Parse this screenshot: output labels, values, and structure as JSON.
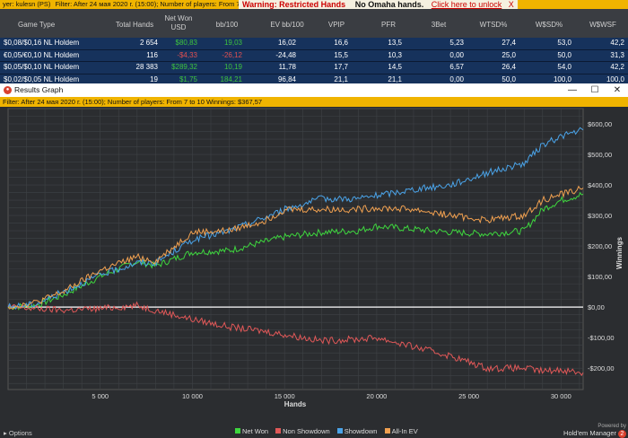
{
  "topbar": {
    "player": "yer: kulesn (PS)",
    "filter": "Filter: After 24 мая 2020 г. (15:00); Number of players: From 7 to 10",
    "warning_title": "Warning: Restricted Hands",
    "warning_detail": "No Omaha hands.",
    "unlock_link": "Click here to unlock",
    "close": "X"
  },
  "table": {
    "headers": [
      "Game Type",
      "Total Hands",
      "Net Won USD",
      "bb/100",
      "EV bb/100",
      "VPIP",
      "PFR",
      "3Bet",
      "WTSD%",
      "W$SD%",
      "W$WSF"
    ],
    "rows": [
      [
        "$0,08/$0,16 NL Holdem",
        "2 654",
        "$80,83",
        "19,03",
        "16,02",
        "16,6",
        "13,5",
        "5,23",
        "27,4",
        "53,0",
        "42,2"
      ],
      [
        "€0,05/€0,10 NL Holdem",
        "116",
        "-$4,33",
        "-26,12",
        "-24,48",
        "15,5",
        "10,3",
        "0,00",
        "25,0",
        "50,0",
        "31,3"
      ],
      [
        "$0,05/$0,10 NL Holdem",
        "28 383",
        "$289,32",
        "10,19",
        "11,78",
        "17,7",
        "14,5",
        "6,57",
        "26,4",
        "54,0",
        "42,2"
      ],
      [
        "$0,02/$0,05 NL Holdem",
        "19",
        "$1,75",
        "184,21",
        "96,84",
        "21,1",
        "21,1",
        "0,00",
        "50,0",
        "100,0",
        "100,0"
      ]
    ],
    "row_colors": [
      "#3ec43e",
      "#e05050",
      "#3ec43e",
      "#3ec43e"
    ]
  },
  "window": {
    "title": "Results Graph",
    "minimize": "—",
    "maximize": "☐",
    "close": "✕",
    "filter": "Filter: After 24 мая 2020 г. (15:00); Number of players: From 7 to 10 Winnings: $367,57"
  },
  "bottom": {
    "options": "Options",
    "powered": "Powered by",
    "brand": "Hold'em Manager",
    "badge": "2"
  },
  "chart_data": {
    "type": "line",
    "xlabel": "Hands",
    "ylabel": "Winnings",
    "xlim": [
      0,
      31200
    ],
    "ylim": [
      -270,
      650
    ],
    "x_ticks": [
      5000,
      10000,
      15000,
      20000,
      25000,
      30000
    ],
    "x_tick_labels": [
      "5 000",
      "10 000",
      "15 000",
      "20 000",
      "25 000",
      "30 000"
    ],
    "y_ticks": [
      -200,
      -100,
      0,
      100,
      200,
      300,
      400,
      500,
      600
    ],
    "y_tick_labels": [
      "-$200,00",
      "-$100,00",
      "$0,00",
      "$100,00",
      "$200,00",
      "$300,00",
      "$400,00",
      "$500,00",
      "$600,00"
    ],
    "grid": true,
    "legend_position": "bottom",
    "x": [
      0,
      1500,
      3000,
      5000,
      7000,
      8000,
      10000,
      12000,
      14000,
      15000,
      17000,
      19000,
      20000,
      22000,
      24000,
      26000,
      28000,
      29000,
      30000,
      31200
    ],
    "series": [
      {
        "name": "Net Won",
        "color": "#3ed63e",
        "values": [
          0,
          5,
          40,
          100,
          150,
          135,
          180,
          185,
          215,
          230,
          245,
          250,
          265,
          255,
          245,
          240,
          250,
          320,
          350,
          370
        ]
      },
      {
        "name": "Non Showdown",
        "color": "#e05858",
        "values": [
          0,
          -5,
          -10,
          -5,
          5,
          -10,
          -40,
          -65,
          -80,
          -90,
          -110,
          -105,
          -100,
          -130,
          -160,
          -200,
          -200,
          -210,
          -205,
          -215
        ]
      },
      {
        "name": "Showdown",
        "color": "#4aa3e8",
        "values": [
          0,
          10,
          50,
          105,
          145,
          145,
          220,
          250,
          295,
          320,
          355,
          355,
          365,
          385,
          400,
          440,
          470,
          530,
          560,
          580
        ]
      },
      {
        "name": "All-In EV",
        "color": "#f0a050",
        "values": [
          0,
          15,
          50,
          120,
          165,
          150,
          245,
          250,
          285,
          320,
          320,
          320,
          325,
          320,
          300,
          285,
          300,
          350,
          370,
          390
        ]
      }
    ]
  }
}
